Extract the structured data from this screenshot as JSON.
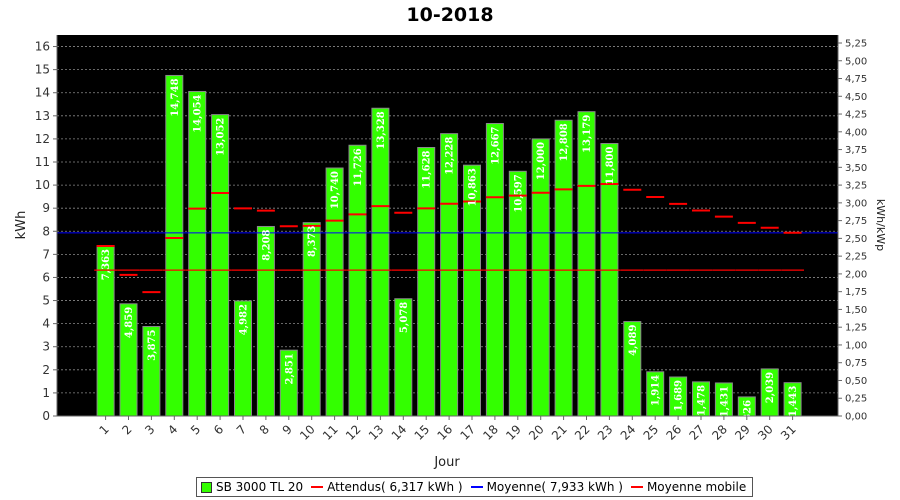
{
  "chart_data": {
    "type": "bar",
    "title": "10-2018",
    "xlabel": "Jour",
    "ylabel": "kWh",
    "y2label": "kWh/kWp",
    "ylim": [
      0,
      16.5
    ],
    "yticks": [
      0,
      1,
      2,
      3,
      4,
      5,
      6,
      7,
      8,
      9,
      10,
      11,
      12,
      13,
      14,
      15,
      16
    ],
    "y2lim": [
      0,
      5.3625
    ],
    "y2ticks": [
      "0,00",
      "0,25",
      "0,50",
      "0,75",
      "1,00",
      "1,25",
      "1,50",
      "1,75",
      "2,00",
      "2,25",
      "2,50",
      "2,75",
      "3,00",
      "3,25",
      "3,50",
      "3,75",
      "4,00",
      "4,25",
      "4,50",
      "4,75",
      "5,00",
      "5,25"
    ],
    "grid": true,
    "legend_position": "bottom",
    "categories": [
      "1",
      "2",
      "3",
      "4",
      "5",
      "6",
      "7",
      "8",
      "9",
      "10",
      "11",
      "12",
      "13",
      "14",
      "15",
      "16",
      "17",
      "18",
      "19",
      "20",
      "21",
      "22",
      "23",
      "24",
      "25",
      "26",
      "27",
      "28",
      "29",
      "30",
      "31"
    ],
    "series": [
      {
        "name": "SB 3000 TL 20",
        "color": "#33ff00",
        "values": [
          7.363,
          4.859,
          3.875,
          14.748,
          14.054,
          13.052,
          4.982,
          8.208,
          2.851,
          8.373,
          10.74,
          11.726,
          13.328,
          5.078,
          11.628,
          12.228,
          10.863,
          12.667,
          10.597,
          12.0,
          12.808,
          13.179,
          11.8,
          4.089,
          1.914,
          1.689,
          1.478,
          1.431,
          0.826,
          2.039,
          1.443
        ],
        "labels": [
          "7,363",
          "4,859",
          "3,875",
          "14,748",
          "14,054",
          "13,052",
          "4,982",
          "8,208",
          "2,851",
          "8,373",
          "10,740",
          "11,726",
          "13,328",
          "5,078",
          "11,628",
          "12,228",
          "10,863",
          "12,667",
          "10,597",
          "12,000",
          "12,808",
          "13,179",
          "11,800",
          "4,089",
          "1,914",
          "1,689",
          "1,478",
          "1,431",
          "0,826",
          "2,039",
          "1,443"
        ]
      },
      {
        "name": "Attendus( 6,317 kWh )",
        "color": "#ff0000",
        "value": 6.317
      },
      {
        "name": "Moyenne( 7,933 kWh )",
        "color": "#0000ff",
        "value": 7.933
      },
      {
        "name": "Moyenne mobile",
        "color": "#ff0000",
        "values": [
          7.363,
          6.111,
          5.366,
          7.711,
          8.98,
          9.658,
          8.99,
          8.892,
          8.22,
          8.235,
          8.463,
          8.734,
          9.087,
          8.801,
          8.99,
          9.19,
          9.288,
          9.474,
          9.543,
          9.666,
          9.816,
          9.968,
          10.048,
          9.8,
          9.485,
          9.185,
          8.899,
          8.632,
          8.363,
          8.152,
          7.935
        ]
      }
    ]
  }
}
